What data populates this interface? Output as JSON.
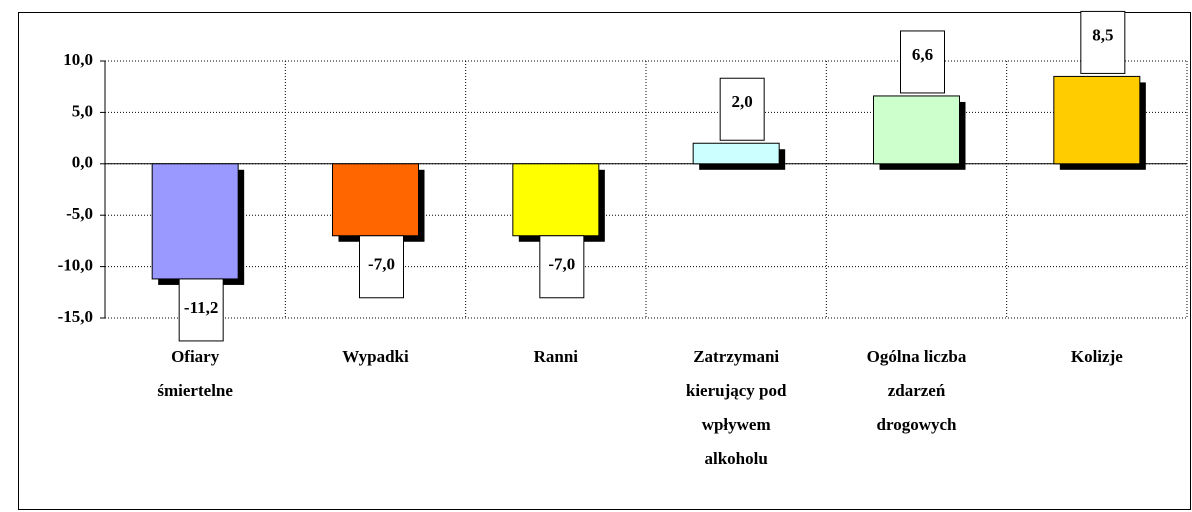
{
  "chart_data": {
    "type": "bar",
    "categories": [
      [
        "Ofiary",
        "śmiertelne"
      ],
      [
        "Wypadki"
      ],
      [
        "Ranni"
      ],
      [
        "Zatrzymani",
        "kierujący pod",
        "wpływem",
        "alkoholu"
      ],
      [
        "Ogólna liczba",
        "zdarzeń",
        "drogowych"
      ],
      [
        "Kolizje"
      ]
    ],
    "values": [
      -11.2,
      -7.0,
      -7.0,
      2.0,
      6.6,
      8.5
    ],
    "value_labels": [
      "-11,2",
      "-7,0",
      "-7,0",
      "2,0",
      "6,6",
      "8,5"
    ],
    "colors": [
      "#9999ff",
      "#ff6600",
      "#ffff00",
      "#ccffff",
      "#ccffcc",
      "#ffcc00"
    ],
    "ylim": [
      -15,
      10
    ],
    "yticks": [
      {
        "value": -15,
        "label": "-15,0"
      },
      {
        "value": -10,
        "label": "-10,0"
      },
      {
        "value": -5,
        "label": "-5,0"
      },
      {
        "value": 0,
        "label": "0,0"
      },
      {
        "value": 5,
        "label": "5,0"
      },
      {
        "value": 10,
        "label": "10,0"
      }
    ],
    "grid": true
  }
}
